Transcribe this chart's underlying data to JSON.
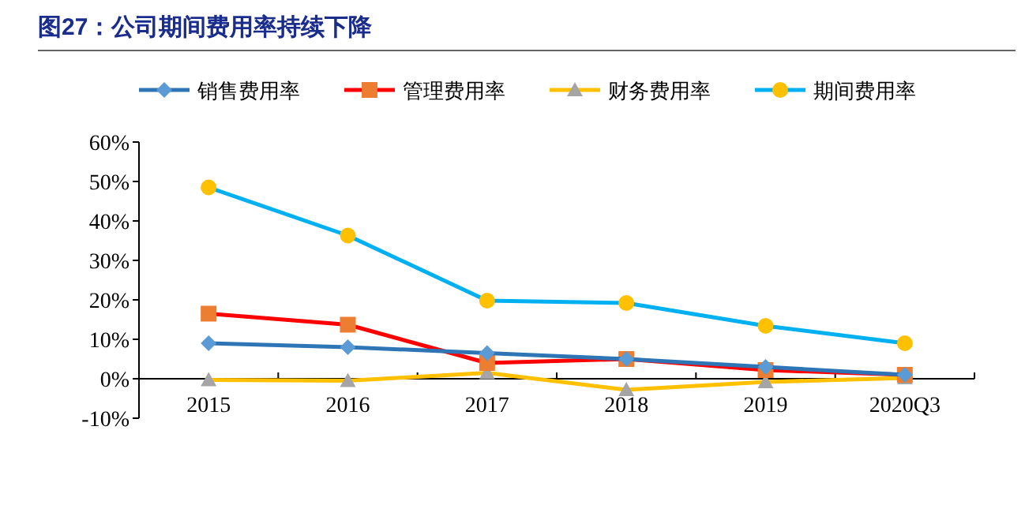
{
  "chart_data": {
    "type": "line",
    "title": "图27：公司期间费用率持续下降",
    "categories": [
      "2015",
      "2016",
      "2017",
      "2018",
      "2019",
      "2020Q3"
    ],
    "series": [
      {
        "name": "销售费用率",
        "color": "#2e75b6",
        "colors": [
          "#5b9bd5",
          "#5b9bd5",
          "#5b9bd5",
          "#5b9bd5",
          "#5b9bd5",
          "#5b9bd5"
        ],
        "marker": "diamond",
        "values": [
          9,
          8,
          6.5,
          5,
          3,
          1
        ]
      },
      {
        "name": "管理费用率",
        "color": "#ff0000",
        "colors": [
          "#ed7d31",
          "#ed7d31",
          "#ed7d31",
          "#ed7d31",
          "#ed7d31",
          "#ed7d31"
        ],
        "marker": "square",
        "values": [
          16.5,
          13.7,
          4,
          5,
          2.2,
          1
        ]
      },
      {
        "name": "财务费用率",
        "color": "#ffc000",
        "colors": [
          "#a5a5a5",
          "#a5a5a5",
          "#a5a5a5",
          "#a5a5a5",
          "#a5a5a5",
          "#a5a5a5"
        ],
        "marker": "triangle",
        "values": [
          -0.3,
          -0.5,
          1.5,
          -2.8,
          -0.8,
          0.2
        ]
      },
      {
        "name": "期间费用率",
        "color": "#00b0f0",
        "colors": [
          "#ffc000",
          "#ffc000",
          "#ffc000",
          "#ffc000",
          "#ffc000",
          "#ffc000"
        ],
        "marker": "circle",
        "values": [
          48.5,
          36.3,
          19.8,
          19.2,
          13.4,
          9
        ]
      }
    ],
    "ylim": [
      -10,
      60
    ],
    "yticks": [
      {
        "value": -10,
        "label": "-10%"
      },
      {
        "value": 0,
        "label": "0%"
      },
      {
        "value": 10,
        "label": "10%"
      },
      {
        "value": 20,
        "label": "20%"
      },
      {
        "value": 30,
        "label": "30%"
      },
      {
        "value": 40,
        "label": "40%"
      },
      {
        "value": 50,
        "label": "50%"
      },
      {
        "value": 60,
        "label": "60%"
      }
    ],
    "legend": "top",
    "grid": false,
    "line_style": "solid"
  }
}
